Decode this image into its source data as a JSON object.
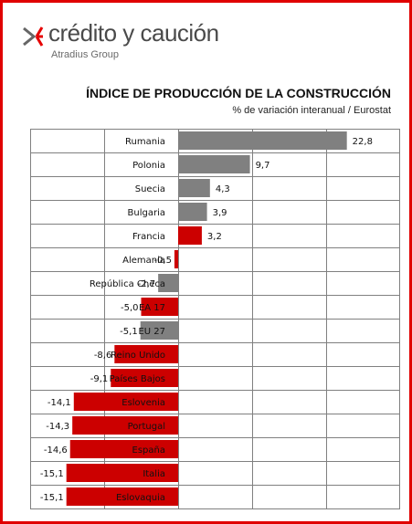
{
  "brand": {
    "name": "crédito y caución",
    "sub": "Atradius Group"
  },
  "chart_data": {
    "type": "bar",
    "orientation": "horizontal",
    "title": "ÍNDICE DE PRODUCCIÓN DE LA CONSTRUCCIÓN",
    "subtitle": "% de variación interanual / Eurostat",
    "xlim": [
      -20,
      30
    ],
    "grid": true,
    "categories": [
      "Rumania",
      "Polonia",
      "Suecia",
      "Bulgaria",
      "Francia",
      "Alemania",
      "República Checa",
      "EA 17",
      "EU 27",
      "Reino Unido",
      "Países Bajos",
      "Eslovenia",
      "Portugal",
      "España",
      "Italia",
      "Eslovaquia"
    ],
    "values": [
      22.8,
      9.7,
      4.3,
      3.9,
      3.2,
      -0.5,
      -2.7,
      -5.0,
      -5.1,
      -8.6,
      -9.1,
      -14.1,
      -14.3,
      -14.6,
      -15.1,
      -15.1
    ],
    "value_labels": [
      "22,8",
      "9,7",
      "4,3",
      "3,9",
      "3,2",
      "-0,5",
      "-2,7",
      "-5,0",
      "-5,1",
      "-8,6",
      "-9,1",
      "-14,1",
      "-14,3",
      "-14,6",
      "-15,1",
      "-15,1"
    ],
    "bar_colors": [
      "#808080",
      "#808080",
      "#808080",
      "#808080",
      "#cc0000",
      "#cc0000",
      "#808080",
      "#cc0000",
      "#808080",
      "#cc0000",
      "#cc0000",
      "#cc0000",
      "#cc0000",
      "#cc0000",
      "#cc0000",
      "#cc0000"
    ]
  },
  "colors": {
    "frame": "#e00000",
    "accent_red": "#cc0000",
    "gray_bar": "#808080",
    "grid": "#808080"
  }
}
